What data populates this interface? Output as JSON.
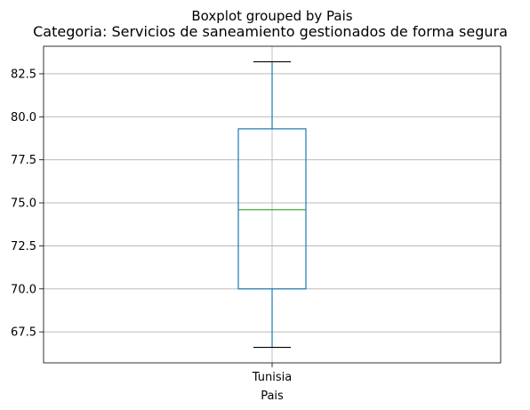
{
  "chart_data": {
    "type": "boxplot",
    "suptitle": "Boxplot grouped by Pais",
    "title": "Categoria: Servicios de saneamiento gestionados de forma segura",
    "xlabel": "Pais",
    "ylabel": "",
    "categories": [
      "Tunisia"
    ],
    "boxes": [
      {
        "category": "Tunisia",
        "whisker_low": 66.6,
        "q1": 70.0,
        "median": 74.6,
        "q3": 79.3,
        "whisker_high": 83.2
      }
    ],
    "ylim": [
      65.7,
      84.1
    ],
    "yticks": [
      67.5,
      70.0,
      72.5,
      75.0,
      77.5,
      80.0,
      82.5
    ],
    "ytick_labels": [
      "67.5",
      "70.0",
      "72.5",
      "75.0",
      "77.5",
      "80.0",
      "82.5"
    ],
    "grid": true,
    "colors": {
      "box": "#1f77b4",
      "median": "#2ca02c",
      "whisker": "#1f77b4",
      "cap": "#000000",
      "grid": "#b0b0b0",
      "frame": "#000000"
    }
  }
}
